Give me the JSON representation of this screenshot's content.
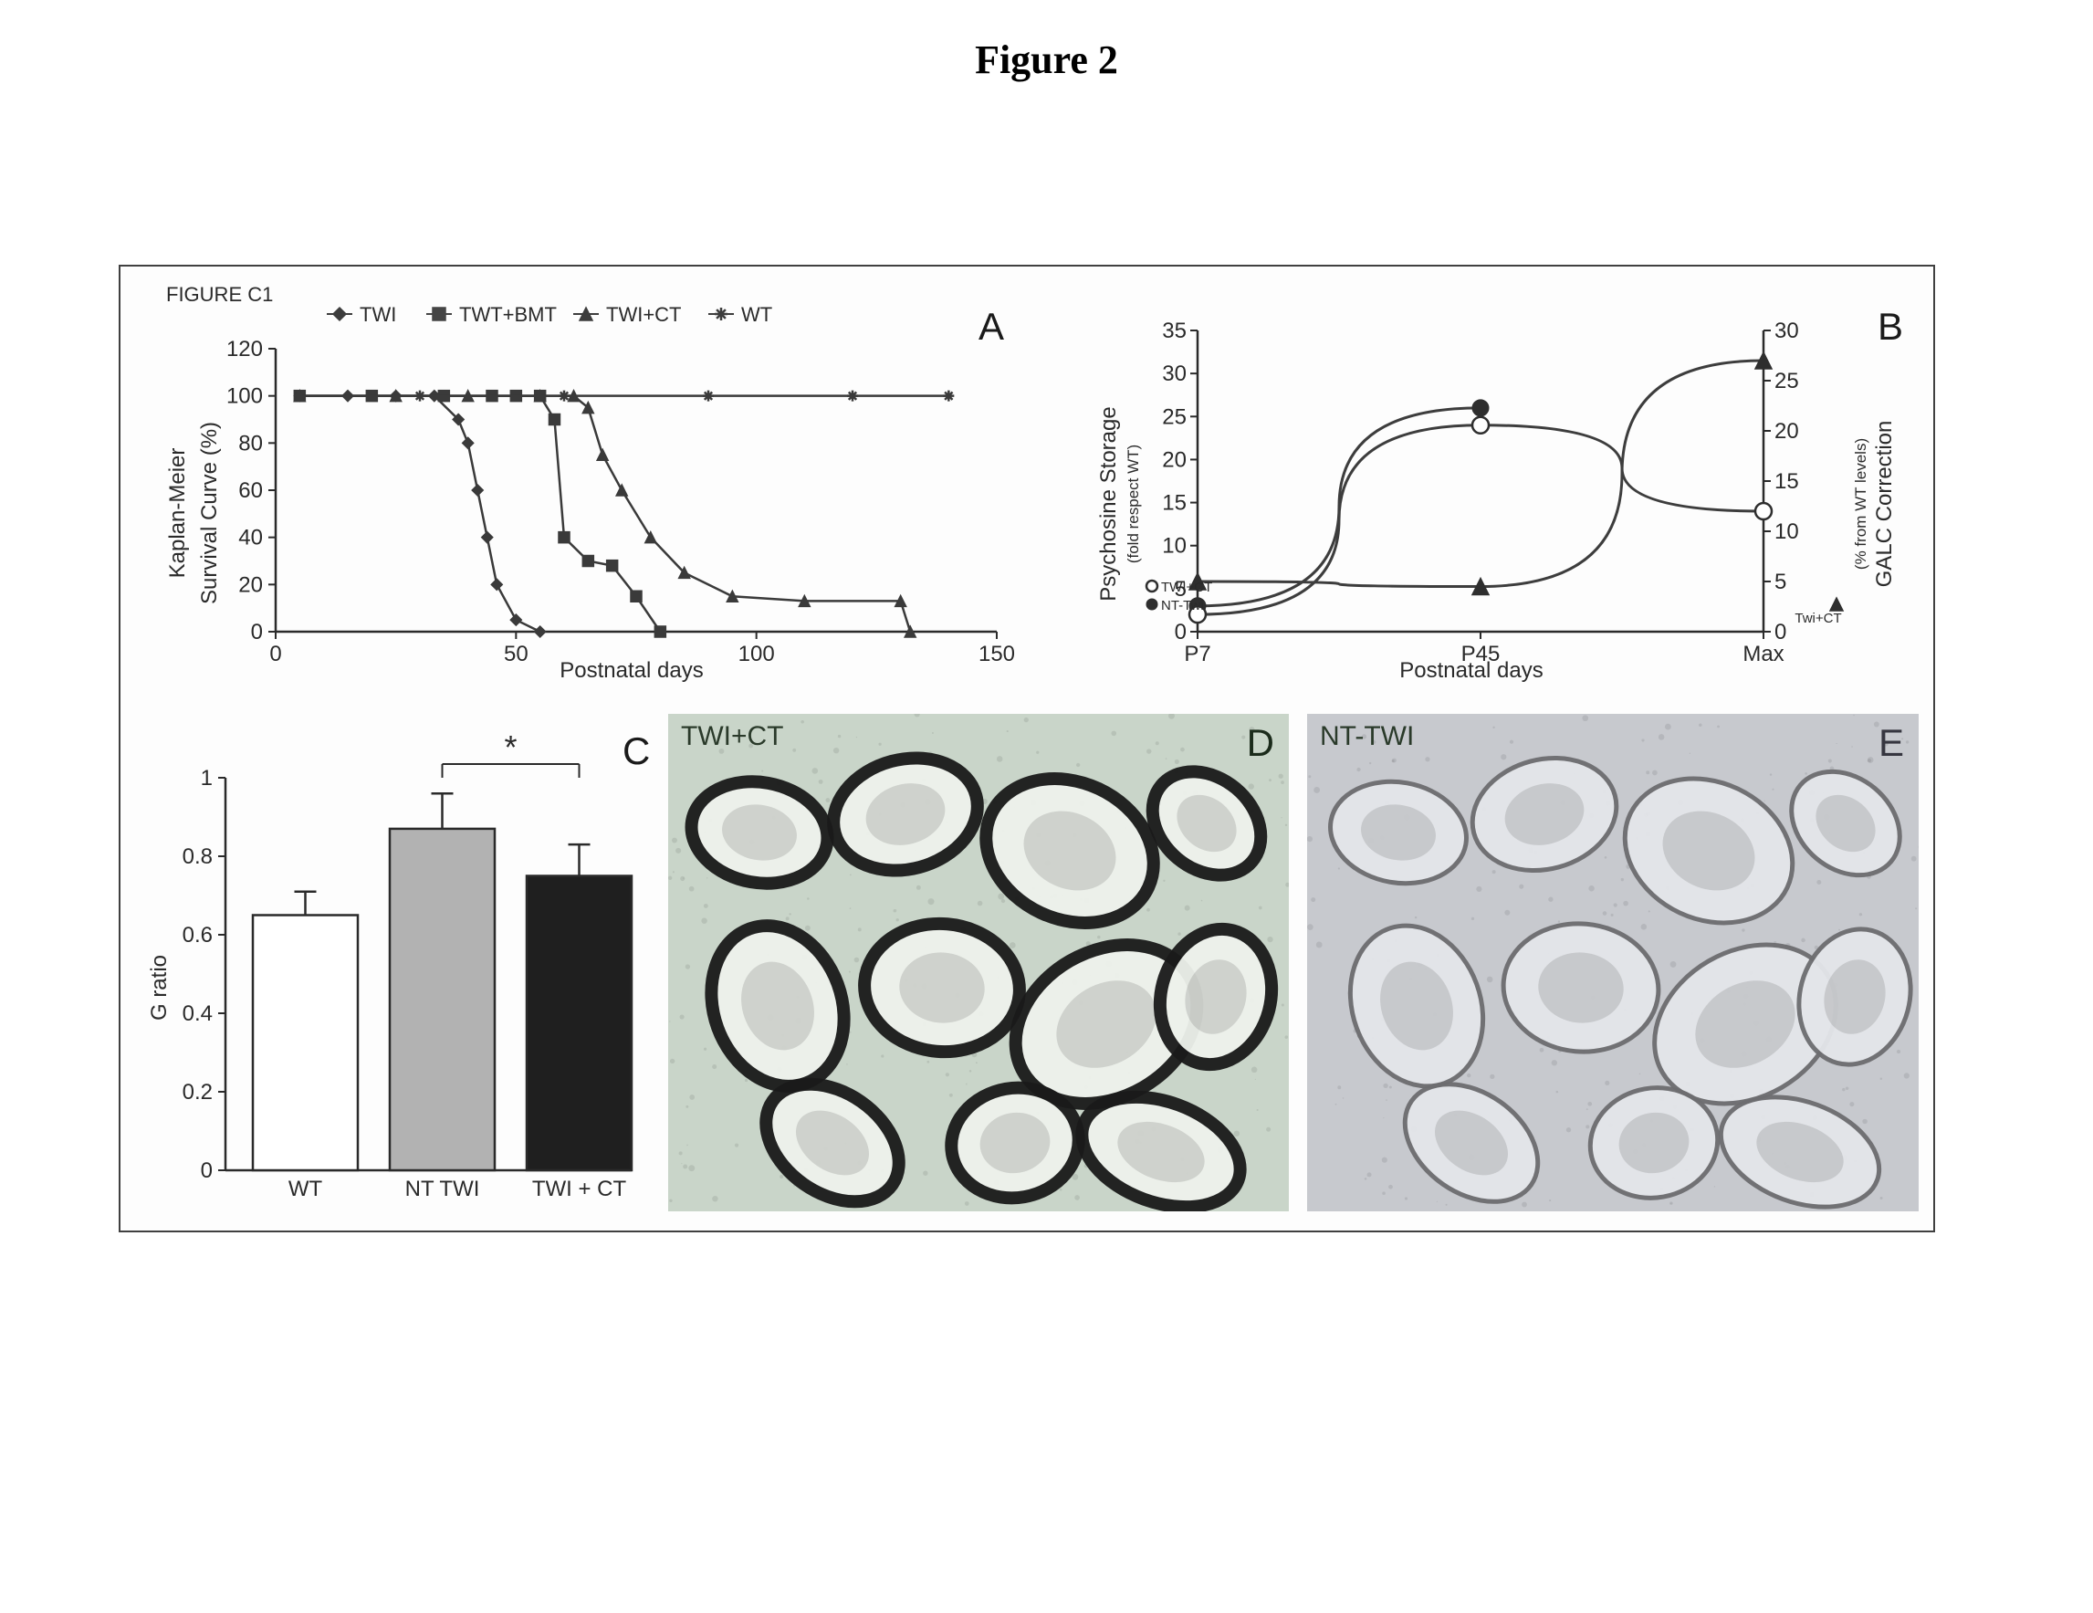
{
  "figure_title": "Figure 2",
  "figure_tag": "FIGURE C1",
  "panel_letters": {
    "A": "A",
    "B": "B",
    "C": "C",
    "D": "D",
    "E": "E"
  },
  "panelA": {
    "type": "line",
    "xlabel": "Postnatal days",
    "ylabel_top": "Kaplan-Meier",
    "ylabel_bottom": "Survival Curve (%)",
    "xlim": [
      0,
      150
    ],
    "xtick_step": 50,
    "ylim": [
      0,
      120
    ],
    "ytick_step": 20,
    "legend": [
      {
        "label": "TWI",
        "color": "#3d3d3d",
        "marker": "diamond"
      },
      {
        "label": "TWT+BMT",
        "color": "#454545",
        "marker": "square"
      },
      {
        "label": "TWI+CT",
        "color": "#3d3d3d",
        "marker": "triangle"
      },
      {
        "label": "WT",
        "color": "#3d3d3d",
        "marker": "asterisk"
      }
    ],
    "series": {
      "TWI": [
        [
          5,
          100
        ],
        [
          15,
          100
        ],
        [
          25,
          100
        ],
        [
          33,
          100
        ],
        [
          38,
          90
        ],
        [
          40,
          80
        ],
        [
          42,
          60
        ],
        [
          44,
          40
        ],
        [
          46,
          20
        ],
        [
          50,
          5
        ],
        [
          55,
          0
        ]
      ],
      "TWT_BMT": [
        [
          5,
          100
        ],
        [
          20,
          100
        ],
        [
          35,
          100
        ],
        [
          45,
          100
        ],
        [
          50,
          100
        ],
        [
          55,
          100
        ],
        [
          58,
          90
        ],
        [
          60,
          40
        ],
        [
          65,
          30
        ],
        [
          70,
          28
        ],
        [
          75,
          15
        ],
        [
          80,
          0
        ]
      ],
      "TWI_CT": [
        [
          5,
          100
        ],
        [
          25,
          100
        ],
        [
          40,
          100
        ],
        [
          55,
          100
        ],
        [
          62,
          100
        ],
        [
          65,
          95
        ],
        [
          68,
          75
        ],
        [
          72,
          60
        ],
        [
          78,
          40
        ],
        [
          85,
          25
        ],
        [
          95,
          15
        ],
        [
          110,
          13
        ],
        [
          130,
          13
        ],
        [
          132,
          0
        ]
      ],
      "WT": [
        [
          5,
          100
        ],
        [
          30,
          100
        ],
        [
          60,
          100
        ],
        [
          90,
          100
        ],
        [
          120,
          100
        ],
        [
          140,
          100
        ]
      ]
    },
    "colors": {
      "axis": "#2a2a2a",
      "line": "#3a3a3a"
    }
  },
  "panelB": {
    "type": "line",
    "xlabel": "Postnatal days",
    "xticks": [
      "P7",
      "P45",
      "Max"
    ],
    "left": {
      "label_top": "Psychosine Storage",
      "label_small": "(fold respect WT)",
      "ylim": [
        0,
        35
      ],
      "ytick_step": 5,
      "markers": [
        {
          "label": "TWI+CT",
          "symbol": "open-circle"
        },
        {
          "label": "NT-Twi",
          "symbol": "closed-circle"
        }
      ]
    },
    "right": {
      "label_top": "GALC Correction",
      "label_small": "(% from WT levels)",
      "ylim": [
        0,
        30
      ],
      "ytick_step": 5,
      "markers": [
        {
          "label": "Twi+CT",
          "symbol": "triangle"
        }
      ]
    },
    "series": {
      "NT_Twi": [
        [
          "P7",
          3
        ],
        [
          "P45",
          26
        ]
      ],
      "TWI_CT": [
        [
          "P7",
          2
        ],
        [
          "P45",
          24
        ],
        [
          "Max",
          14
        ]
      ],
      "GALC": [
        [
          "P7",
          5
        ],
        [
          "P45",
          4.5
        ],
        [
          "Max",
          27
        ]
      ]
    },
    "colors": {
      "line": "#3d3d3d",
      "marker_fill": "#2e2e2e",
      "marker_open": "#ffffff"
    }
  },
  "panelC": {
    "type": "bar",
    "ylabel": "G ratio",
    "ylim": [
      0,
      1
    ],
    "ytick_step": 0.2,
    "categories": [
      "WT",
      "NT TWI",
      "TWI + CT"
    ],
    "values": [
      0.65,
      0.87,
      0.75
    ],
    "errors": [
      0.06,
      0.09,
      0.08
    ],
    "bar_colors": [
      "#ffffff",
      "#b2b2b2",
      "#1f1f1f"
    ],
    "bar_border": "#2a2a2a",
    "significance": {
      "label": "*",
      "from": 1,
      "to": 2
    }
  },
  "panelD": {
    "label": "TWI+CT",
    "bg": "#c9d5c9",
    "ring_stroke": "#1a1a1a",
    "lumen": "#eef2ec"
  },
  "panelE": {
    "label": "NT-TWI",
    "bg": "#c7c9ce",
    "ring_stroke": "#6d6d70",
    "lumen": "#e4e6ea"
  }
}
